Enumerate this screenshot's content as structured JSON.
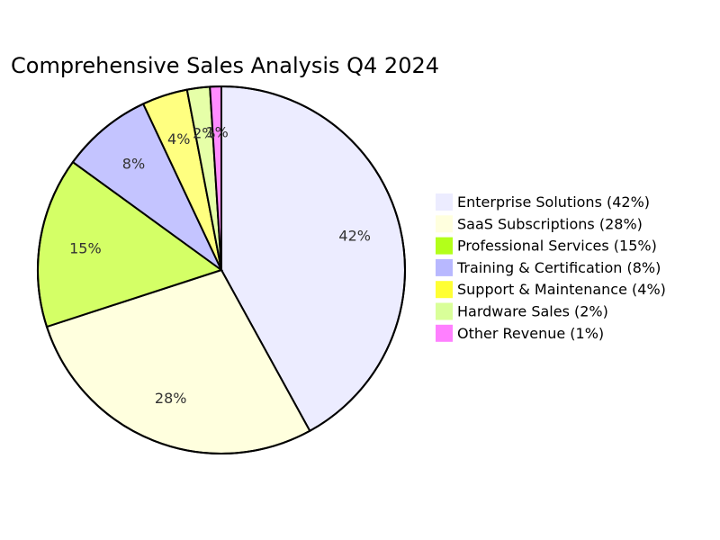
{
  "chart_data": {
    "type": "pie",
    "title": "Comprehensive Sales Analysis Q4 2024",
    "slices": [
      {
        "name": "Enterprise Solutions",
        "value": 42,
        "label": "42%",
        "legend": "Enterprise Solutions (42%)",
        "color": "#ececff",
        "swatch": "#ececff"
      },
      {
        "name": "SaaS Subscriptions",
        "value": 28,
        "label": "28%",
        "legend": "SaaS Subscriptions (28%)",
        "color": "#ffffde",
        "swatch": "#ffffde"
      },
      {
        "name": "Professional Services",
        "value": 15,
        "label": "15%",
        "legend": "Professional Services (15%)",
        "color": "#d4ff66",
        "swatch": "#b3ff1a"
      },
      {
        "name": "Training & Certification",
        "value": 8,
        "label": "8%",
        "legend": "Training & Certification (8%)",
        "color": "#c4c4ff",
        "swatch": "#b8b8ff"
      },
      {
        "name": "Support & Maintenance",
        "value": 4,
        "label": "4%",
        "legend": "Support & Maintenance (4%)",
        "color": "#ffff80",
        "swatch": "#ffff33"
      },
      {
        "name": "Hardware Sales",
        "value": 2,
        "label": "2%",
        "legend": "Hardware Sales (2%)",
        "color": "#e6ffa8",
        "swatch": "#d9ff99"
      },
      {
        "name": "Other Revenue",
        "value": 1,
        "label": "1%",
        "legend": "Other Revenue (1%)",
        "color": "#ff8cff",
        "swatch": "#ff80ff"
      }
    ],
    "legend_position": "right"
  }
}
